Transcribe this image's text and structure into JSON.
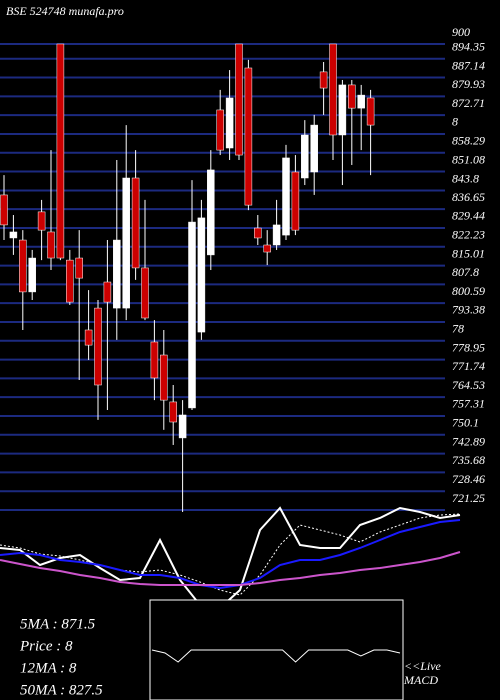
{
  "chart_data": [
    {
      "type": "candlestick",
      "title": "BSE 524748 munafa.pro",
      "open": [
        842.1,
        825.6,
        824.8,
        804.9,
        835.6,
        827.9,
        900,
        817.1,
        817.9,
        790.3,
        798.7,
        808.7,
        798.7,
        798.7,
        848.6,
        814.1,
        785.7,
        780.7,
        762.7,
        748.9,
        760.4,
        789.5,
        819.1,
        874.7,
        860.1,
        900,
        890.8,
        829.4,
        822.9,
        822.9,
        826.7,
        850.9,
        848.6,
        850.9,
        889.3,
        900,
        865.1,
        884.3,
        875.4,
        879.3
      ],
      "high": [
        849.7,
        834.4,
        828.6,
        821.0,
        840.2,
        859.3,
        900,
        821.0,
        828.6,
        805.6,
        801.8,
        824.8,
        855.5,
        868.9,
        859.3,
        840.2,
        794.1,
        790.3,
        769.2,
        763.4,
        847.8,
        840.2,
        859.3,
        882.4,
        890.0,
        900,
        893.9,
        834.4,
        828.6,
        840.2,
        861.3,
        857.4,
        870.8,
        872.8,
        893.1,
        900,
        886.2,
        886.2,
        884.3,
        882.4
      ],
      "low": [
        824.8,
        819.1,
        790.3,
        801.8,
        817.1,
        813.3,
        817.1,
        799.9,
        771.1,
        778.8,
        755.8,
        759.6,
        786.5,
        794.1,
        809.5,
        794.1,
        763.4,
        752.0,
        746.2,
        720.5,
        759.6,
        786.5,
        813.3,
        857.4,
        855.5,
        855.5,
        836.3,
        822.9,
        815.2,
        821.0,
        824.8,
        826.7,
        845.9,
        842.1,
        872.8,
        855.5,
        845.9,
        853.6,
        859.3,
        849.7
      ],
      "close": [
        830.6,
        827.9,
        804.9,
        817.9,
        828.6,
        817.9,
        817.9,
        801.0,
        810.2,
        784.5,
        769.2,
        801.0,
        824.8,
        848.6,
        814.1,
        794.9,
        771.9,
        763.4,
        755.0,
        757.7,
        831.7,
        833.3,
        851.7,
        859.3,
        879.3,
        857.4,
        838.2,
        825.6,
        820.2,
        830.6,
        856.3,
        828.6,
        865.1,
        868.9,
        883.1,
        865.1,
        884.3,
        875.4,
        880.4,
        868.9
      ],
      "up_color": "#ffffff",
      "down_color": "#cc0000",
      "grid": true,
      "grid_color": "#1c2a80",
      "ylim": [
        721.25,
        900
      ],
      "yticks": [
        900,
        894.35,
        887.14,
        879.93,
        872.71,
        {
          "value": 865.5,
          "label": "8"
        },
        858.29,
        851.08,
        843.8,
        836.65,
        829.44,
        822.23,
        815.01,
        807.8,
        800.59,
        793.38,
        {
          "value": 786.17,
          "label": "78"
        },
        778.95,
        771.74,
        764.53,
        757.31,
        750.1,
        742.89,
        735.68,
        728.46,
        721.25
      ],
      "annotations": [
        "5MA : 871.5",
        "Price : 8",
        "12MA : 8",
        "50MA : 827.5"
      ]
    },
    {
      "type": "line",
      "x": [
        0,
        20,
        40,
        60,
        80,
        100,
        120,
        140,
        160,
        180,
        200,
        220,
        240,
        260,
        280,
        300,
        320,
        340,
        360,
        380,
        400,
        420,
        440,
        460
      ],
      "xlim": [
        0,
        470
      ],
      "ylim": [
        -20,
        100
      ],
      "series": [
        {
          "color": "#ffffff",
          "dash": false,
          "values": [
            52,
            50,
            35,
            42,
            45,
            32,
            20,
            22,
            60,
            20,
            -5,
            -8,
            10,
            70,
            92,
            55,
            52,
            52,
            75,
            82,
            92,
            88,
            82,
            85
          ]
        },
        {
          "color": "#ffffff",
          "dash": true,
          "values": [
            55,
            52,
            46,
            44,
            40,
            35,
            30,
            28,
            30,
            25,
            18,
            10,
            5,
            25,
            55,
            75,
            70,
            65,
            58,
            68,
            75,
            82,
            85,
            86
          ]
        },
        {
          "color": "#1a1aff",
          "dash": false,
          "values": [
            45,
            47,
            45,
            40,
            38,
            35,
            30,
            25,
            25,
            22,
            15,
            12,
            15,
            22,
            35,
            40,
            40,
            45,
            52,
            60,
            68,
            73,
            78,
            80
          ]
        },
        {
          "color": "#cc55cc",
          "dash": false,
          "values": [
            40,
            36,
            32,
            29,
            25,
            22,
            18,
            16,
            15,
            15,
            15,
            15,
            15,
            17,
            20,
            22,
            25,
            27,
            30,
            32,
            35,
            38,
            42,
            48
          ]
        }
      ]
    },
    {
      "type": "macd",
      "x": [
        0,
        1,
        2,
        3,
        4,
        5,
        6,
        7,
        8,
        9,
        10,
        11,
        12,
        13,
        14,
        15,
        16,
        17,
        18,
        19
      ],
      "xlim": [
        0,
        19
      ],
      "ylim": [
        -10,
        10
      ],
      "series": [
        {
          "color": "#ffffff",
          "values": [
            0,
            -1,
            -4,
            0,
            0,
            0,
            0,
            0,
            0,
            0,
            0,
            -4,
            0,
            0,
            0,
            0,
            -2,
            0,
            0,
            -1
          ]
        }
      ],
      "label": [
        "<<Live",
        "MACD"
      ]
    }
  ]
}
